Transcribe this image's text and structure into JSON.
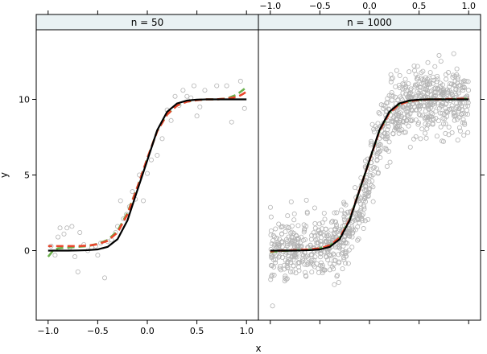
{
  "chart_data": {
    "type": "scatter",
    "xlabel": "x",
    "ylabel": "y",
    "xlim": [
      -1.12,
      1.12
    ],
    "ylim": [
      -4.6,
      14.6
    ],
    "x_ticks": [
      -1.0,
      -0.5,
      0.0,
      0.5,
      1.0
    ],
    "x_tick_labels": [
      "−1.0",
      "−0.5",
      "0.0",
      "0.5",
      "1.0"
    ],
    "y_ticks": [
      0,
      5,
      10
    ],
    "y_tick_labels": [
      "0",
      "5",
      "10"
    ],
    "colors": {
      "points": "#b3b3b3",
      "true_curve": "#000000",
      "fit_red": "#e8452c",
      "fit_green": "#6ab04c",
      "strip_bg": "#e9f1f3",
      "frame": "#000000"
    },
    "panels": [
      {
        "strip": "n = 50",
        "n": 50,
        "points": [
          [
            -0.97,
            0.3
          ],
          [
            -0.93,
            -0.3
          ],
          [
            -0.9,
            0.9
          ],
          [
            -0.88,
            1.5
          ],
          [
            -0.84,
            1.1
          ],
          [
            -0.81,
            1.5
          ],
          [
            -0.78,
            0.2
          ],
          [
            -0.76,
            1.6
          ],
          [
            -0.73,
            -0.4
          ],
          [
            -0.7,
            -1.4
          ],
          [
            -0.68,
            1.2
          ],
          [
            -0.64,
            0.4
          ],
          [
            -0.6,
            0.0
          ],
          [
            -0.56,
            0.2
          ],
          [
            -0.52,
            0.3
          ],
          [
            -0.5,
            -0.3
          ],
          [
            -0.47,
            0.5
          ],
          [
            -0.43,
            -1.8
          ],
          [
            -0.4,
            0.6
          ],
          [
            -0.36,
            0.7
          ],
          [
            -0.32,
            1.2
          ],
          [
            -0.3,
            1.6
          ],
          [
            -0.27,
            3.3
          ],
          [
            -0.24,
            2.1
          ],
          [
            -0.21,
            2.4
          ],
          [
            -0.18,
            2.9
          ],
          [
            -0.15,
            3.9
          ],
          [
            -0.12,
            3.4
          ],
          [
            -0.08,
            5.0
          ],
          [
            -0.04,
            3.3
          ],
          [
            0.0,
            5.1
          ],
          [
            0.04,
            6.0
          ],
          [
            0.1,
            6.3
          ],
          [
            0.15,
            7.4
          ],
          [
            0.2,
            9.3
          ],
          [
            0.24,
            8.6
          ],
          [
            0.28,
            10.2
          ],
          [
            0.32,
            9.6
          ],
          [
            0.36,
            10.6
          ],
          [
            0.4,
            10.2
          ],
          [
            0.44,
            10.1
          ],
          [
            0.47,
            10.9
          ],
          [
            0.5,
            8.9
          ],
          [
            0.53,
            9.5
          ],
          [
            0.58,
            10.6
          ],
          [
            0.7,
            10.9
          ],
          [
            0.8,
            10.9
          ],
          [
            0.85,
            8.5
          ],
          [
            0.94,
            11.2
          ],
          [
            0.98,
            9.4
          ]
        ],
        "true_curve": [
          [
            -1.0,
            0.0
          ],
          [
            -0.9,
            0.0
          ],
          [
            -0.8,
            0.0
          ],
          [
            -0.7,
            0.01
          ],
          [
            -0.6,
            0.03
          ],
          [
            -0.5,
            0.08
          ],
          [
            -0.4,
            0.25
          ],
          [
            -0.3,
            0.76
          ],
          [
            -0.2,
            2.0
          ],
          [
            -0.1,
            4.0
          ],
          [
            0.0,
            5.97
          ],
          [
            0.1,
            7.96
          ],
          [
            0.2,
            9.18
          ],
          [
            0.3,
            9.73
          ],
          [
            0.4,
            9.92
          ],
          [
            0.5,
            9.98
          ],
          [
            0.6,
            10.0
          ],
          [
            0.7,
            10.0
          ],
          [
            0.8,
            10.0
          ],
          [
            0.9,
            10.0
          ],
          [
            1.0,
            10.0
          ]
        ],
        "fit_red": [
          [
            -1.0,
            0.3
          ],
          [
            -0.9,
            0.3
          ],
          [
            -0.8,
            0.3
          ],
          [
            -0.7,
            0.3
          ],
          [
            -0.6,
            0.33
          ],
          [
            -0.5,
            0.42
          ],
          [
            -0.4,
            0.65
          ],
          [
            -0.3,
            1.2
          ],
          [
            -0.2,
            2.4
          ],
          [
            -0.1,
            4.2
          ],
          [
            0.0,
            6.1
          ],
          [
            0.1,
            7.9
          ],
          [
            0.2,
            9.0
          ],
          [
            0.3,
            9.6
          ],
          [
            0.4,
            9.85
          ],
          [
            0.5,
            9.95
          ],
          [
            0.6,
            10.0
          ],
          [
            0.7,
            10.0
          ],
          [
            0.8,
            10.05
          ],
          [
            0.9,
            10.15
          ],
          [
            0.95,
            10.3
          ],
          [
            1.0,
            10.5
          ]
        ],
        "fit_green": [
          [
            -1.0,
            -0.4
          ],
          [
            -0.95,
            0.0
          ],
          [
            -0.9,
            0.15
          ],
          [
            -0.8,
            0.2
          ],
          [
            -0.7,
            0.25
          ],
          [
            -0.6,
            0.3
          ],
          [
            -0.5,
            0.45
          ],
          [
            -0.4,
            0.7
          ],
          [
            -0.3,
            1.3
          ],
          [
            -0.2,
            2.5
          ],
          [
            -0.1,
            4.2
          ],
          [
            0.0,
            6.1
          ],
          [
            0.1,
            7.9
          ],
          [
            0.2,
            9.0
          ],
          [
            0.3,
            9.6
          ],
          [
            0.4,
            9.85
          ],
          [
            0.5,
            9.95
          ],
          [
            0.6,
            10.0
          ],
          [
            0.7,
            10.0
          ],
          [
            0.8,
            10.05
          ],
          [
            0.9,
            10.3
          ],
          [
            1.0,
            10.8
          ]
        ]
      },
      {
        "strip": "n = 1000",
        "n": 1000,
        "true_curve": [
          [
            -1.0,
            0.0
          ],
          [
            -0.9,
            0.0
          ],
          [
            -0.8,
            0.0
          ],
          [
            -0.7,
            0.01
          ],
          [
            -0.6,
            0.03
          ],
          [
            -0.5,
            0.08
          ],
          [
            -0.4,
            0.25
          ],
          [
            -0.3,
            0.76
          ],
          [
            -0.2,
            2.0
          ],
          [
            -0.1,
            4.0
          ],
          [
            0.0,
            5.97
          ],
          [
            0.1,
            7.96
          ],
          [
            0.2,
            9.18
          ],
          [
            0.3,
            9.73
          ],
          [
            0.4,
            9.92
          ],
          [
            0.5,
            9.98
          ],
          [
            0.6,
            10.0
          ],
          [
            0.7,
            10.0
          ],
          [
            0.8,
            10.0
          ],
          [
            0.9,
            10.0
          ],
          [
            1.0,
            10.0
          ]
        ],
        "fit_red": [
          [
            -1.0,
            -0.05
          ],
          [
            -0.9,
            0.0
          ],
          [
            -0.8,
            0.02
          ],
          [
            -0.7,
            0.05
          ],
          [
            -0.6,
            0.08
          ],
          [
            -0.5,
            0.15
          ],
          [
            -0.4,
            0.35
          ],
          [
            -0.3,
            0.85
          ],
          [
            -0.2,
            2.05
          ],
          [
            -0.1,
            4.0
          ],
          [
            0.0,
            5.95
          ],
          [
            0.1,
            7.9
          ],
          [
            0.2,
            9.1
          ],
          [
            0.3,
            9.65
          ],
          [
            0.4,
            9.88
          ],
          [
            0.5,
            9.96
          ],
          [
            0.6,
            10.0
          ],
          [
            0.7,
            10.0
          ],
          [
            0.8,
            10.02
          ],
          [
            0.9,
            10.03
          ],
          [
            1.0,
            10.05
          ]
        ],
        "fit_green": [
          [
            -1.0,
            -0.1
          ],
          [
            -0.9,
            -0.02
          ],
          [
            -0.8,
            0.0
          ],
          [
            -0.7,
            0.03
          ],
          [
            -0.6,
            0.07
          ],
          [
            -0.5,
            0.15
          ],
          [
            -0.4,
            0.34
          ],
          [
            -0.3,
            0.84
          ],
          [
            -0.2,
            2.04
          ],
          [
            -0.1,
            4.0
          ],
          [
            0.0,
            5.96
          ],
          [
            0.1,
            7.92
          ],
          [
            0.2,
            9.12
          ],
          [
            0.3,
            9.66
          ],
          [
            0.4,
            9.88
          ],
          [
            0.5,
            9.96
          ],
          [
            0.6,
            10.0
          ],
          [
            0.7,
            10.0
          ],
          [
            0.8,
            10.0
          ],
          [
            0.9,
            10.02
          ],
          [
            1.0,
            10.05
          ]
        ],
        "noise_sd": 1.0
      }
    ]
  }
}
